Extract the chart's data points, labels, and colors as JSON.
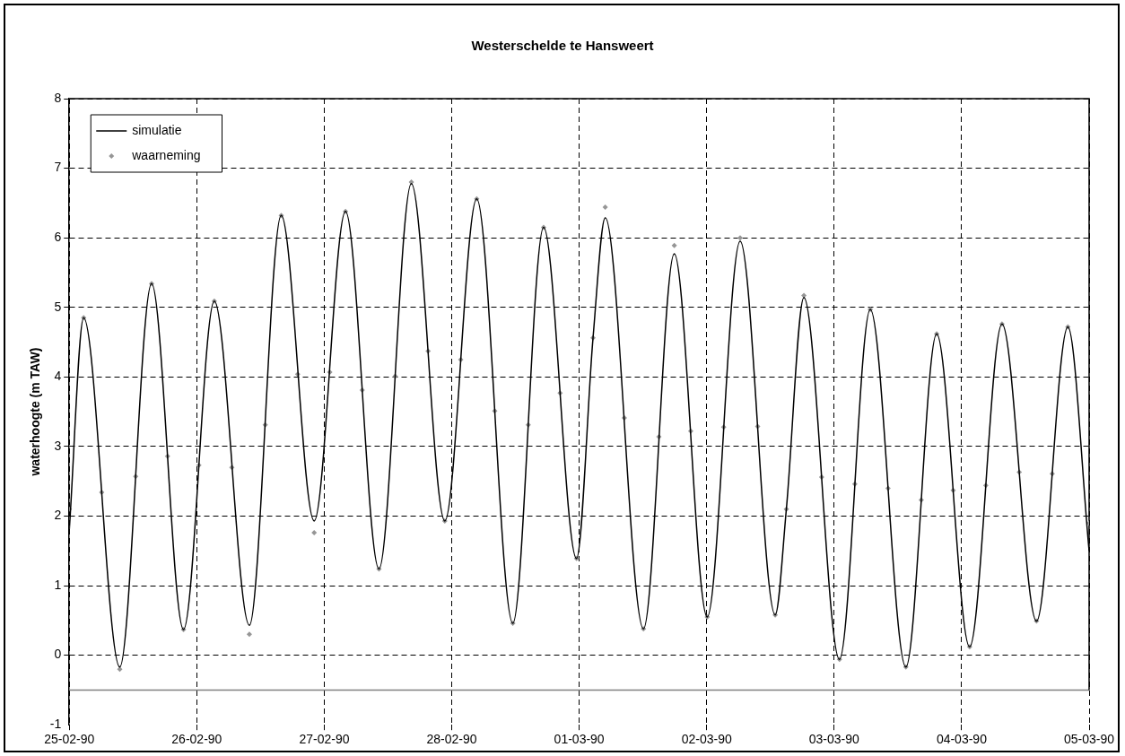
{
  "chart_data": {
    "type": "line",
    "title": "Westerschelde te Hansweert",
    "ylabel": "waterhoogte (m TAW)",
    "xlim": [
      "1990-02-25",
      "1990-03-05"
    ],
    "xticks": [
      {
        "value": "1990-02-25",
        "label": "25-02-90"
      },
      {
        "value": "1990-02-26",
        "label": "26-02-90"
      },
      {
        "value": "1990-02-27",
        "label": "27-02-90"
      },
      {
        "value": "1990-02-28",
        "label": "28-02-90"
      },
      {
        "value": "1990-03-01",
        "label": "01-03-90"
      },
      {
        "value": "1990-03-02",
        "label": "02-03-90"
      },
      {
        "value": "1990-03-03",
        "label": "03-03-90"
      },
      {
        "value": "1990-03-04",
        "label": "04-03-90"
      },
      {
        "value": "1990-03-05",
        "label": "05-03-90"
      }
    ],
    "ylim": [
      -1,
      8
    ],
    "yticks": [
      -1,
      0,
      1,
      2,
      3,
      4,
      5,
      6,
      7,
      8
    ],
    "grid": true,
    "legend": "top left",
    "ref_lines": [
      {
        "axis": "y",
        "value": -0.5,
        "color": "#808080"
      }
    ],
    "series": [
      {
        "name": "simulatie",
        "type": "line",
        "color": "#000000",
        "x": [
          "1990-02-25T00:00",
          "1990-02-25T02:42",
          "1990-02-25T09:30",
          "1990-02-25T15:30",
          "1990-02-25T21:30",
          "1990-02-26T03:18",
          "1990-02-26T09:54",
          "1990-02-26T15:54",
          "1990-02-26T22:06",
          "1990-02-27T04:00",
          "1990-02-27T10:18",
          "1990-02-27T16:24",
          "1990-02-27T22:42",
          "1990-02-28T04:42",
          "1990-02-28T11:30",
          "1990-02-28T17:18",
          "1990-02-28T23:30",
          "1990-03-01T02:36",
          "1990-03-01T04:54",
          "1990-03-01T12:06",
          "1990-03-01T17:54",
          "1990-03-02T00:06",
          "1990-03-02T06:18",
          "1990-03-02T12:54",
          "1990-03-02T15:00",
          "1990-03-02T18:18",
          "1990-03-03T01:00",
          "1990-03-03T06:48",
          "1990-03-03T13:30",
          "1990-03-03T19:18",
          "1990-03-04T01:30",
          "1990-03-04T07:36",
          "1990-03-04T14:06",
          "1990-03-04T20:00",
          "1990-03-05T00:00"
        ],
        "values": [
          1.8,
          4.85,
          -0.17,
          5.34,
          0.37,
          5.09,
          0.43,
          6.32,
          1.93,
          6.38,
          1.24,
          6.78,
          1.93,
          6.56,
          0.46,
          6.15,
          1.39,
          4.56,
          6.29,
          0.38,
          5.77,
          0.55,
          5.95,
          0.58,
          2.1,
          5.14,
          -0.06,
          4.97,
          -0.17,
          4.62,
          0.12,
          4.76,
          0.49,
          4.72,
          1.5
        ]
      },
      {
        "name": "waarneming",
        "type": "scatter",
        "marker": "diamond",
        "color": "#969696",
        "x": [
          "1990-02-25T00:00",
          "1990-02-25T02:42",
          "1990-02-25T06:06",
          "1990-02-25T09:30",
          "1990-02-25T12:30",
          "1990-02-25T15:30",
          "1990-02-25T18:30",
          "1990-02-25T21:30",
          "1990-02-26T00:24",
          "1990-02-26T03:18",
          "1990-02-26T06:36",
          "1990-02-26T09:54",
          "1990-02-26T12:54",
          "1990-02-26T15:54",
          "1990-02-26T19:00",
          "1990-02-26T22:06",
          "1990-02-27T01:03",
          "1990-02-27T04:00",
          "1990-02-27T07:09",
          "1990-02-27T10:18",
          "1990-02-27T13:21",
          "1990-02-27T16:24",
          "1990-02-27T19:33",
          "1990-02-27T22:42",
          "1990-02-28T01:42",
          "1990-02-28T04:42",
          "1990-02-28T08:06",
          "1990-02-28T11:30",
          "1990-02-28T14:24",
          "1990-02-28T17:18",
          "1990-02-28T20:24",
          "1990-02-28T23:30",
          "1990-03-01T02:36",
          "1990-03-01T04:54",
          "1990-03-01T08:30",
          "1990-03-01T12:06",
          "1990-03-01T15:00",
          "1990-03-01T17:54",
          "1990-03-01T21:00",
          "1990-03-02T00:06",
          "1990-03-02T03:12",
          "1990-03-02T06:18",
          "1990-03-02T09:36",
          "1990-03-02T12:54",
          "1990-03-02T15:00",
          "1990-03-02T18:18",
          "1990-03-02T21:39",
          "1990-03-03T01:00",
          "1990-03-03T03:54",
          "1990-03-03T06:48",
          "1990-03-03T10:09",
          "1990-03-03T13:30",
          "1990-03-03T16:24",
          "1990-03-03T19:18",
          "1990-03-03T22:24",
          "1990-03-04T01:30",
          "1990-03-04T04:33",
          "1990-03-04T07:36",
          "1990-03-04T10:51",
          "1990-03-04T14:06",
          "1990-03-04T17:03",
          "1990-03-04T20:00",
          "1990-03-05T00:00"
        ],
        "values": [
          2.1,
          4.85,
          2.34,
          -0.2,
          2.57,
          5.34,
          2.86,
          0.37,
          2.73,
          5.09,
          2.7,
          0.3,
          3.31,
          6.32,
          4.04,
          1.76,
          4.07,
          6.38,
          3.81,
          1.24,
          4.01,
          6.8,
          4.37,
          1.93,
          4.25,
          6.56,
          3.51,
          0.46,
          3.31,
          6.15,
          3.77,
          1.39,
          4.56,
          6.44,
          3.41,
          0.38,
          3.14,
          5.89,
          3.22,
          0.55,
          3.28,
          6.0,
          3.29,
          0.58,
          2.1,
          5.17,
          2.56,
          -0.06,
          2.46,
          4.97,
          2.4,
          -0.17,
          2.23,
          4.62,
          2.37,
          0.12,
          2.44,
          4.76,
          2.63,
          0.49,
          2.61,
          4.72,
          1.9
        ]
      }
    ]
  }
}
